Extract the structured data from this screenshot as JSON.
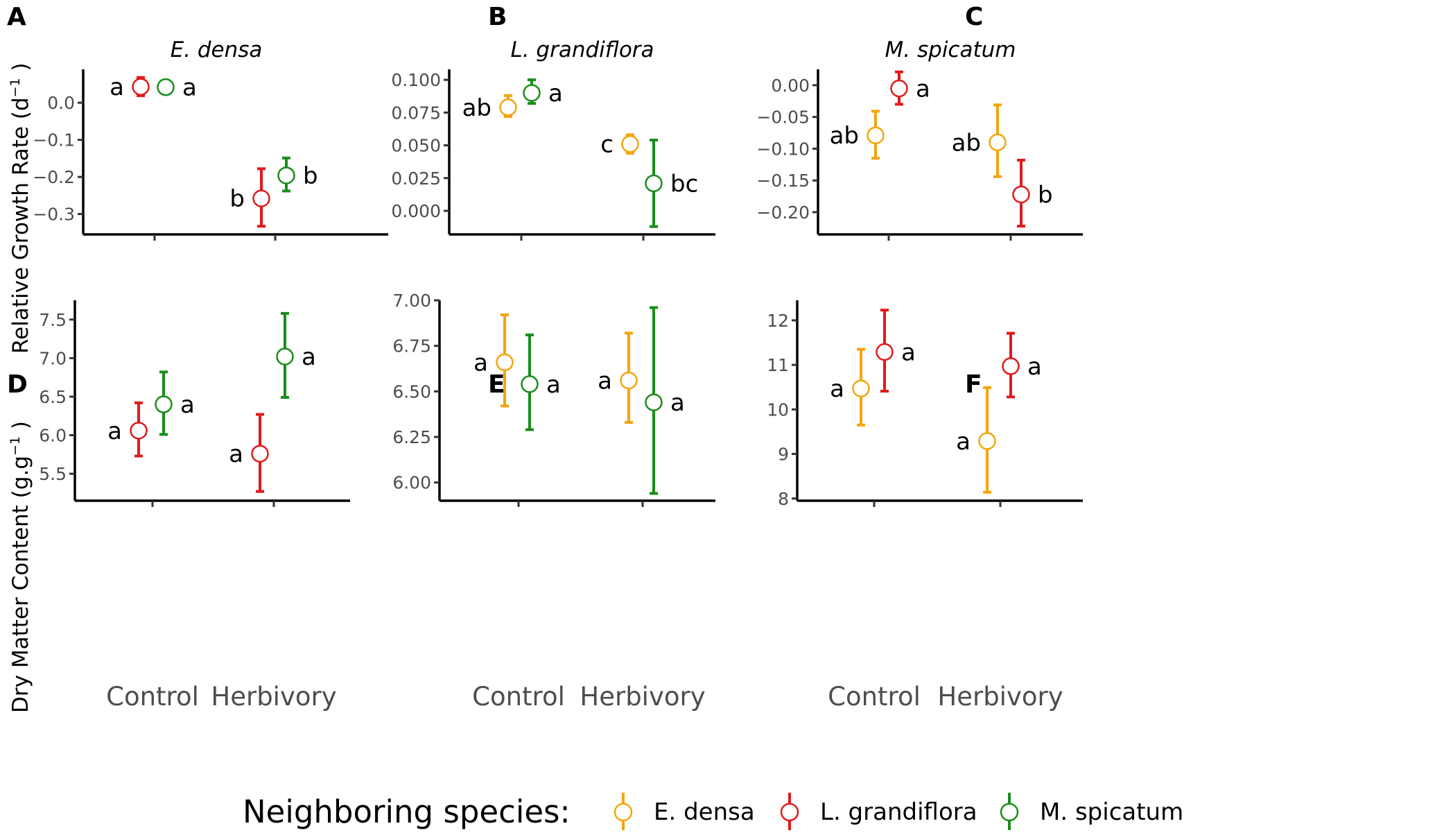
{
  "figure": {
    "ylabel_top": "Relative Growth Rate (d",
    "ylabel_top_sup": "−1",
    "ylabel_top_close": " )",
    "ylabel_bottom": "Dry Matter Content (g.g",
    "ylabel_bottom_sup": "−1",
    "ylabel_bottom_close": " )",
    "categories": [
      "Control",
      "Herbivory"
    ]
  },
  "legend": {
    "title": "Neighboring species:",
    "items": [
      {
        "label": "E. densa",
        "color": "#f5a40c"
      },
      {
        "label": "L. grandiflora",
        "color": "#e11a1a"
      },
      {
        "label": "M. spicatum",
        "color": "#1a8c1a"
      }
    ]
  },
  "colors": {
    "E. densa": "#f5a40c",
    "L. grandiflora": "#e11a1a",
    "M. spicatum": "#1a8c1a"
  },
  "chart_data": [
    {
      "panel": "A",
      "type": "scatter",
      "title": "E. densa",
      "ylabel": "Relative Growth Rate (d−1 )",
      "ylim": [
        -0.355,
        0.09
      ],
      "yticks": [
        0.0,
        -0.1,
        -0.2,
        -0.3
      ],
      "yticklabels": [
        "0.0",
        "−0.1",
        "−0.2",
        "−0.3"
      ],
      "categories": [
        "Control",
        "Herbivory"
      ],
      "series": [
        {
          "name": "L. grandiflora",
          "cat": "Control",
          "y": 0.043,
          "lo": 0.019,
          "hi": 0.068,
          "label": "a",
          "side": "left"
        },
        {
          "name": "M. spicatum",
          "cat": "Control",
          "y": 0.042,
          "lo": 0.03,
          "hi": 0.056,
          "label": "a",
          "side": "right"
        },
        {
          "name": "L. grandiflora",
          "cat": "Herbivory",
          "y": -0.258,
          "lo": -0.333,
          "hi": -0.178,
          "label": "b",
          "side": "left"
        },
        {
          "name": "M. spicatum",
          "cat": "Herbivory",
          "y": -0.196,
          "lo": -0.238,
          "hi": -0.149,
          "label": "b",
          "side": "right"
        }
      ]
    },
    {
      "panel": "B",
      "type": "scatter",
      "title": "L. grandiflora",
      "ylim": [
        -0.018,
        0.108
      ],
      "yticks": [
        0.1,
        0.075,
        0.05,
        0.025,
        0.0
      ],
      "yticklabels": [
        "0.100",
        "0.075",
        "0.050",
        "0.025",
        "0.000"
      ],
      "categories": [
        "Control",
        "Herbivory"
      ],
      "series": [
        {
          "name": "E. densa",
          "cat": "Control",
          "y": 0.079,
          "lo": 0.072,
          "hi": 0.088,
          "label": "ab",
          "side": "left"
        },
        {
          "name": "M. spicatum",
          "cat": "Control",
          "y": 0.09,
          "lo": 0.082,
          "hi": 0.1,
          "label": "a",
          "side": "right"
        },
        {
          "name": "E. densa",
          "cat": "Herbivory",
          "y": 0.051,
          "lo": 0.044,
          "hi": 0.058,
          "label": "c",
          "side": "left"
        },
        {
          "name": "M. spicatum",
          "cat": "Herbivory",
          "y": 0.021,
          "lo": -0.012,
          "hi": 0.054,
          "label": "bc",
          "side": "right"
        }
      ]
    },
    {
      "panel": "C",
      "type": "scatter",
      "title": "M. spicatum",
      "ylim": [
        -0.235,
        0.025
      ],
      "yticks": [
        0.0,
        -0.05,
        -0.1,
        -0.15,
        -0.2
      ],
      "yticklabels": [
        "0.00",
        "−0.05",
        "−0.10",
        "−0.15",
        "−0.20"
      ],
      "categories": [
        "Control",
        "Herbivory"
      ],
      "series": [
        {
          "name": "E. densa",
          "cat": "Control",
          "y": -0.079,
          "lo": -0.115,
          "hi": -0.041,
          "label": "ab",
          "side": "left"
        },
        {
          "name": "L. grandiflora",
          "cat": "Control",
          "y": -0.005,
          "lo": -0.03,
          "hi": 0.021,
          "label": "a",
          "side": "right"
        },
        {
          "name": "E. densa",
          "cat": "Herbivory",
          "y": -0.09,
          "lo": -0.144,
          "hi": -0.031,
          "label": "ab",
          "side": "left"
        },
        {
          "name": "L. grandiflora",
          "cat": "Herbivory",
          "y": -0.172,
          "lo": -0.222,
          "hi": -0.118,
          "label": "b",
          "side": "right"
        }
      ]
    },
    {
      "panel": "D",
      "type": "scatter",
      "ylabel": "Dry Matter Content (g.g−1 )",
      "ylim": [
        5.15,
        7.75
      ],
      "yticks": [
        7.5,
        7.0,
        6.5,
        6.0,
        5.5
      ],
      "yticklabels": [
        "7.5",
        "7.0",
        "6.5",
        "6.0",
        "5.5"
      ],
      "categories": [
        "Control",
        "Herbivory"
      ],
      "series": [
        {
          "name": "L. grandiflora",
          "cat": "Control",
          "y": 6.06,
          "lo": 5.73,
          "hi": 6.42,
          "label": "a",
          "side": "left"
        },
        {
          "name": "M. spicatum",
          "cat": "Control",
          "y": 6.4,
          "lo": 6.01,
          "hi": 6.82,
          "label": "a",
          "side": "right"
        },
        {
          "name": "L. grandiflora",
          "cat": "Herbivory",
          "y": 5.76,
          "lo": 5.27,
          "hi": 6.27,
          "label": "a",
          "side": "left"
        },
        {
          "name": "M. spicatum",
          "cat": "Herbivory",
          "y": 7.02,
          "lo": 6.49,
          "hi": 7.58,
          "label": "a",
          "side": "right"
        }
      ]
    },
    {
      "panel": "E",
      "type": "scatter",
      "ylim": [
        5.9,
        7.0
      ],
      "yticks": [
        7.0,
        6.75,
        6.5,
        6.25,
        6.0
      ],
      "yticklabels": [
        "7.00",
        "6.75",
        "6.50",
        "6.25",
        "6.00"
      ],
      "categories": [
        "Control",
        "Herbivory"
      ],
      "series": [
        {
          "name": "E. densa",
          "cat": "Control",
          "y": 6.66,
          "lo": 6.42,
          "hi": 6.92,
          "label": "a",
          "side": "left"
        },
        {
          "name": "M. spicatum",
          "cat": "Control",
          "y": 6.54,
          "lo": 6.29,
          "hi": 6.81,
          "label": "a",
          "side": "right"
        },
        {
          "name": "E. densa",
          "cat": "Herbivory",
          "y": 6.56,
          "lo": 6.33,
          "hi": 6.82,
          "label": "a",
          "side": "left"
        },
        {
          "name": "M. spicatum",
          "cat": "Herbivory",
          "y": 6.44,
          "lo": 5.94,
          "hi": 6.96,
          "label": "a",
          "side": "right"
        }
      ]
    },
    {
      "panel": "F",
      "type": "scatter",
      "ylim": [
        7.95,
        12.45
      ],
      "yticks": [
        12,
        11,
        10,
        9,
        8
      ],
      "yticklabels": [
        "12",
        "11",
        "10",
        "9",
        "8"
      ],
      "categories": [
        "Control",
        "Herbivory"
      ],
      "series": [
        {
          "name": "E. densa",
          "cat": "Control",
          "y": 10.47,
          "lo": 9.65,
          "hi": 11.35,
          "label": "a",
          "side": "left"
        },
        {
          "name": "L. grandiflora",
          "cat": "Control",
          "y": 11.29,
          "lo": 10.41,
          "hi": 12.23,
          "label": "a",
          "side": "right"
        },
        {
          "name": "E. densa",
          "cat": "Herbivory",
          "y": 9.29,
          "lo": 8.14,
          "hi": 10.49,
          "label": "a",
          "side": "left"
        },
        {
          "name": "L. grandiflora",
          "cat": "Herbivory",
          "y": 10.97,
          "lo": 10.28,
          "hi": 11.71,
          "label": "a",
          "side": "right"
        }
      ]
    }
  ]
}
